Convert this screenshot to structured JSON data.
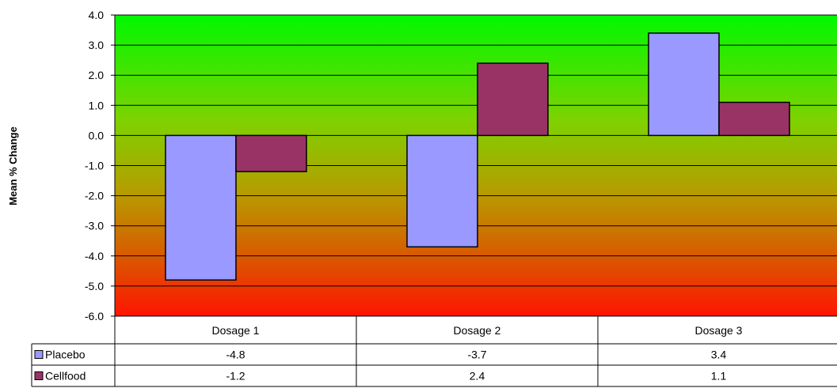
{
  "chart_data": {
    "type": "bar",
    "title": "",
    "xlabel": "",
    "ylabel": "Mean % Change",
    "ylim": [
      -6,
      4
    ],
    "ytick_step": 1,
    "grid": true,
    "legend": "data-table",
    "background": "vertical gradient from green (top) through yellow-brown to red (bottom)",
    "categories": [
      "Dosage 1",
      "Dosage 2",
      "Dosage 3"
    ],
    "series": [
      {
        "name": "Placebo",
        "values": [
          -4.8,
          -3.7,
          3.4
        ],
        "color": "#9999FF"
      },
      {
        "name": "Cellfood",
        "values": [
          -1.2,
          2.4,
          1.1
        ],
        "color": "#993366"
      }
    ]
  }
}
